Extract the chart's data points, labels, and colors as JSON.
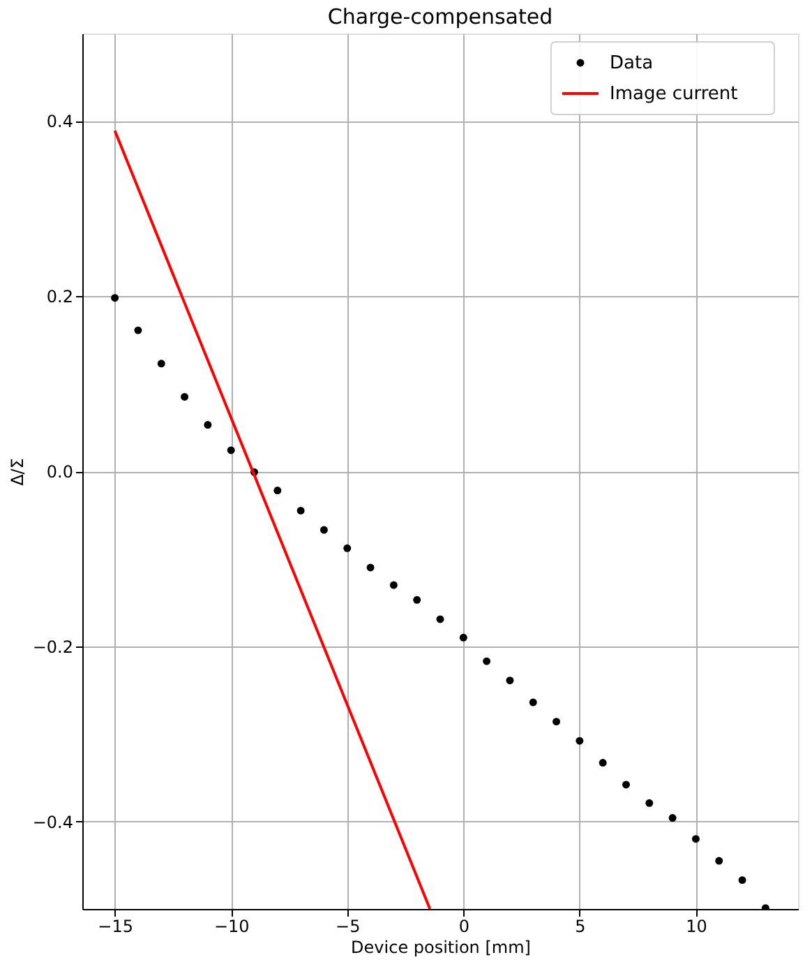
{
  "chart_data": {
    "type": "scatter",
    "title": "Charge-compensated",
    "xlabel": "Device position [mm]",
    "ylabel": "Δ/Σ",
    "xlim": [
      -16.4,
      14.4
    ],
    "ylim": [
      -0.5,
      0.5
    ],
    "xticks": [
      -15,
      -10,
      -5,
      0,
      5,
      10
    ],
    "yticks": [
      -0.4,
      -0.2,
      {
        "value": 0,
        "label": "0.0"
      },
      0.2,
      0.4
    ],
    "grid": true,
    "legend": "top right",
    "series": [
      {
        "name": "Data",
        "color": "#000000",
        "marker": "circle",
        "x": [
          -15,
          -14,
          -13,
          -12,
          -11,
          -10,
          -9,
          -8,
          -7,
          -6,
          -5,
          -4,
          -3,
          -2,
          -1,
          0,
          1,
          2,
          3,
          4,
          5,
          6,
          7,
          8,
          9,
          10,
          11,
          12,
          13
        ],
        "values": [
          0.198,
          0.161,
          0.123,
          0.085,
          0.053,
          0.024,
          -0.001,
          -0.022,
          -0.045,
          -0.067,
          -0.088,
          -0.11,
          -0.13,
          -0.147,
          -0.169,
          -0.19,
          -0.217,
          -0.239,
          -0.264,
          -0.286,
          -0.308,
          -0.333,
          -0.358,
          -0.379,
          -0.396,
          -0.42,
          -0.445,
          -0.467,
          -0.499
        ]
      },
      {
        "name": "Image current",
        "type": "line",
        "color": "#ff0000",
        "marker": "none",
        "line_style": "solid",
        "x": [
          -15,
          -1.44
        ],
        "values": [
          0.389,
          -0.5
        ]
      }
    ]
  }
}
